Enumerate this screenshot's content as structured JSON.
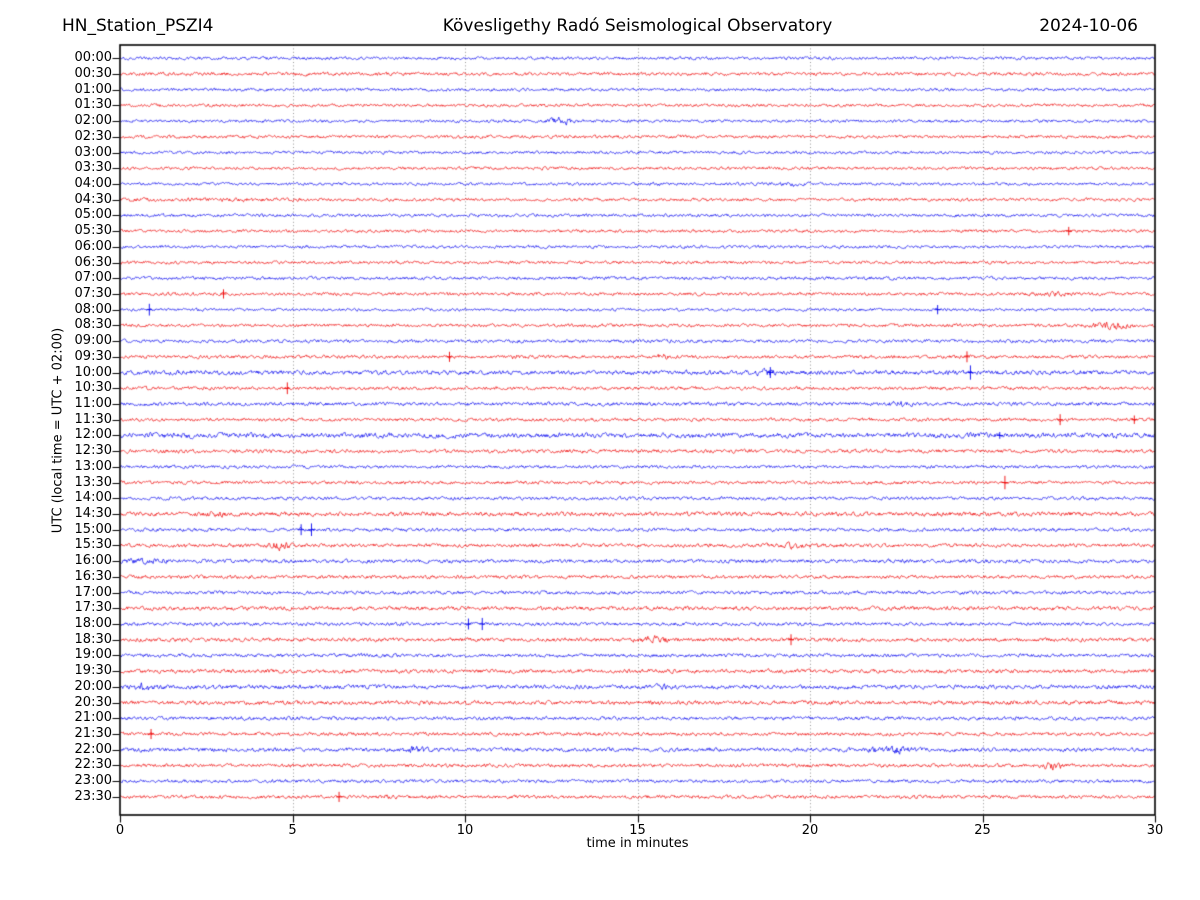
{
  "header": {
    "station": "HN_Station_PSZI4",
    "observatory": "Kövesligethy Radó Seismological Observatory",
    "date": "2024-10-06"
  },
  "chart_data": {
    "type": "line",
    "variant": "helicorder-seismogram",
    "xlabel": "time in minutes",
    "ylabel": "UTC (local time = UTC + 02:00)",
    "xlim": [
      0,
      30
    ],
    "x_ticks": [
      0,
      5,
      10,
      15,
      20,
      25,
      30
    ],
    "grid_minutes": [
      5,
      10,
      15,
      20,
      25
    ],
    "row_interval_minutes": 30,
    "colors": {
      "even_rows": "#0000ee",
      "odd_rows": "#ee0000",
      "grid": "#8a8a8a",
      "frame": "#000000"
    },
    "rows": [
      {
        "label": "00:00",
        "color": "blue",
        "noise": 1.0
      },
      {
        "label": "00:30",
        "color": "red",
        "noise": 1.1
      },
      {
        "label": "01:00",
        "color": "blue",
        "noise": 1.0
      },
      {
        "label": "01:30",
        "color": "red",
        "noise": 1.0
      },
      {
        "label": "02:00",
        "color": "blue",
        "noise": 1.0
      },
      {
        "label": "02:30",
        "color": "red",
        "noise": 1.05
      },
      {
        "label": "03:00",
        "color": "blue",
        "noise": 1.0
      },
      {
        "label": "03:30",
        "color": "red",
        "noise": 1.0
      },
      {
        "label": "04:00",
        "color": "blue",
        "noise": 0.95
      },
      {
        "label": "04:30",
        "color": "red",
        "noise": 1.0
      },
      {
        "label": "05:00",
        "color": "blue",
        "noise": 1.05
      },
      {
        "label": "05:30",
        "color": "red",
        "noise": 1.0
      },
      {
        "label": "06:00",
        "color": "blue",
        "noise": 1.0
      },
      {
        "label": "06:30",
        "color": "red",
        "noise": 1.0
      },
      {
        "label": "07:00",
        "color": "blue",
        "noise": 1.1
      },
      {
        "label": "07:30",
        "color": "red",
        "noise": 1.05
      },
      {
        "label": "08:00",
        "color": "blue",
        "noise": 0.95
      },
      {
        "label": "08:30",
        "color": "red",
        "noise": 1.05
      },
      {
        "label": "09:00",
        "color": "blue",
        "noise": 1.1
      },
      {
        "label": "09:30",
        "color": "red",
        "noise": 1.1
      },
      {
        "label": "10:00",
        "color": "blue",
        "noise": 1.45
      },
      {
        "label": "10:30",
        "color": "red",
        "noise": 1.1
      },
      {
        "label": "11:00",
        "color": "blue",
        "noise": 1.2
      },
      {
        "label": "11:30",
        "color": "red",
        "noise": 1.1
      },
      {
        "label": "12:00",
        "color": "blue",
        "noise": 1.6,
        "wavy": true
      },
      {
        "label": "12:30",
        "color": "red",
        "noise": 1.2
      },
      {
        "label": "13:00",
        "color": "blue",
        "noise": 1.05
      },
      {
        "label": "13:30",
        "color": "red",
        "noise": 1.1
      },
      {
        "label": "14:00",
        "color": "blue",
        "noise": 1.1
      },
      {
        "label": "14:30",
        "color": "red",
        "noise": 1.4
      },
      {
        "label": "15:00",
        "color": "blue",
        "noise": 1.15
      },
      {
        "label": "15:30",
        "color": "red",
        "noise": 1.2
      },
      {
        "label": "16:00",
        "color": "blue",
        "noise": 1.25
      },
      {
        "label": "16:30",
        "color": "red",
        "noise": 1.15
      },
      {
        "label": "17:00",
        "color": "blue",
        "noise": 1.15
      },
      {
        "label": "17:30",
        "color": "red",
        "noise": 1.3
      },
      {
        "label": "18:00",
        "color": "blue",
        "noise": 1.15
      },
      {
        "label": "18:30",
        "color": "red",
        "noise": 1.25
      },
      {
        "label": "19:00",
        "color": "blue",
        "noise": 1.15
      },
      {
        "label": "19:30",
        "color": "red",
        "noise": 1.3
      },
      {
        "label": "20:00",
        "color": "blue",
        "noise": 1.35
      },
      {
        "label": "20:30",
        "color": "red",
        "noise": 1.35
      },
      {
        "label": "21:00",
        "color": "blue",
        "noise": 1.2
      },
      {
        "label": "21:30",
        "color": "red",
        "noise": 1.15
      },
      {
        "label": "22:00",
        "color": "blue",
        "noise": 1.3
      },
      {
        "label": "22:30",
        "color": "red",
        "noise": 1.15
      },
      {
        "label": "23:00",
        "color": "blue",
        "noise": 1.1
      },
      {
        "label": "23:30",
        "color": "red",
        "noise": 1.15
      }
    ],
    "events": [
      {
        "row": "02:00",
        "kind": "burst",
        "start": 12.4,
        "end": 13.2,
        "amp": 2.6
      },
      {
        "row": "04:00",
        "kind": "burst",
        "start": 15.3,
        "end": 15.8,
        "amp": 1.5
      },
      {
        "row": "04:00",
        "kind": "burst",
        "start": 18.9,
        "end": 20.0,
        "amp": 1.7
      },
      {
        "row": "04:30",
        "kind": "elevated",
        "start": 0,
        "end": 5,
        "amp": 1.3
      },
      {
        "row": "05:30",
        "kind": "spike",
        "t": 27.5,
        "amp": 2.0
      },
      {
        "row": "07:30",
        "kind": "spike",
        "t": 3.0,
        "amp": 2.2
      },
      {
        "row": "07:30",
        "kind": "burst",
        "start": 26.8,
        "end": 27.6,
        "amp": 1.8
      },
      {
        "row": "08:00",
        "kind": "spike",
        "t": 0.85,
        "amp": 2.8
      },
      {
        "row": "08:00",
        "kind": "spike",
        "t": 23.7,
        "amp": 2.2
      },
      {
        "row": "08:30",
        "kind": "burst",
        "start": 28.1,
        "end": 29.4,
        "amp": 2.6
      },
      {
        "row": "09:30",
        "kind": "spike",
        "t": 9.55,
        "amp": 2.4
      },
      {
        "row": "09:30",
        "kind": "burst",
        "start": 11.3,
        "end": 11.8,
        "amp": 2.0
      },
      {
        "row": "09:30",
        "kind": "burst",
        "start": 15.5,
        "end": 16.1,
        "amp": 2.2
      },
      {
        "row": "09:30",
        "kind": "spike",
        "t": 24.55,
        "amp": 2.6
      },
      {
        "row": "10:00",
        "kind": "burst",
        "start": 18.4,
        "end": 19.0,
        "amp": 2.4
      },
      {
        "row": "10:00",
        "kind": "spike",
        "t": 18.85,
        "amp": 2.6
      },
      {
        "row": "10:00",
        "kind": "spike",
        "t": 24.65,
        "amp": 3.4
      },
      {
        "row": "10:30",
        "kind": "spike",
        "t": 4.85,
        "amp": 2.8
      },
      {
        "row": "11:00",
        "kind": "burst",
        "start": 22.2,
        "end": 22.9,
        "amp": 2.1
      },
      {
        "row": "11:00",
        "kind": "burst",
        "start": 27.8,
        "end": 28.3,
        "amp": 1.7
      },
      {
        "row": "11:30",
        "kind": "spike",
        "t": 27.25,
        "amp": 2.6
      },
      {
        "row": "11:30",
        "kind": "spike",
        "t": 29.4,
        "amp": 2.0
      },
      {
        "row": "12:00",
        "kind": "spike",
        "t": 25.5,
        "amp": 1.6
      },
      {
        "row": "13:30",
        "kind": "spike",
        "t": 25.65,
        "amp": 3.2
      },
      {
        "row": "14:30",
        "kind": "burst",
        "start": 2.5,
        "end": 3.2,
        "amp": 1.6
      },
      {
        "row": "15:00",
        "kind": "spike",
        "t": 5.25,
        "amp": 2.6
      },
      {
        "row": "15:00",
        "kind": "spike",
        "t": 5.55,
        "amp": 3.0
      },
      {
        "row": "15:30",
        "kind": "burst",
        "start": 4.3,
        "end": 5.0,
        "amp": 2.6
      },
      {
        "row": "15:30",
        "kind": "burst",
        "start": 19.0,
        "end": 20.1,
        "amp": 2.0
      },
      {
        "row": "16:00",
        "kind": "burst",
        "start": 0.0,
        "end": 1.5,
        "amp": 1.6
      },
      {
        "row": "18:00",
        "kind": "spike",
        "t": 10.1,
        "amp": 2.6
      },
      {
        "row": "18:00",
        "kind": "spike",
        "t": 10.5,
        "amp": 2.9
      },
      {
        "row": "18:30",
        "kind": "burst",
        "start": 15.0,
        "end": 15.9,
        "amp": 2.3
      },
      {
        "row": "18:30",
        "kind": "spike",
        "t": 19.45,
        "amp": 2.6
      },
      {
        "row": "20:00",
        "kind": "burst",
        "start": 0.3,
        "end": 1.1,
        "amp": 2.2
      },
      {
        "row": "20:00",
        "kind": "burst",
        "start": 15.4,
        "end": 15.9,
        "amp": 1.8
      },
      {
        "row": "21:30",
        "kind": "spike",
        "t": 0.9,
        "amp": 2.4
      },
      {
        "row": "22:00",
        "kind": "burst",
        "start": 8.2,
        "end": 9.0,
        "amp": 2.1
      },
      {
        "row": "22:00",
        "kind": "burst",
        "start": 21.7,
        "end": 23.0,
        "amp": 2.2
      },
      {
        "row": "22:30",
        "kind": "burst",
        "start": 26.7,
        "end": 27.4,
        "amp": 2.8
      },
      {
        "row": "23:30",
        "kind": "spike",
        "t": 6.35,
        "amp": 2.4
      },
      {
        "row": "23:30",
        "kind": "burst",
        "start": 7.6,
        "end": 8.1,
        "amp": 1.5
      }
    ]
  }
}
